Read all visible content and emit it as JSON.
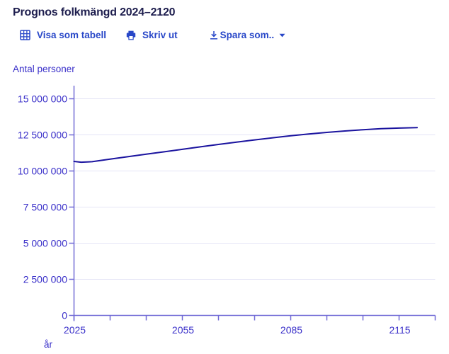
{
  "header": {
    "title": "Prognos folkmängd 2024–2120"
  },
  "toolbar": {
    "view_as_table_label": "Visa som tabell",
    "print_label": "Skriv ut",
    "save_as_label": "Spara som..",
    "icons": {
      "view_as_table": "table-grid-icon",
      "print": "printer-icon",
      "save_as": "download-icon",
      "save_as_menu": "chevron-down-icon"
    }
  },
  "chart": {
    "y_axis_title": "Antal personer",
    "x_axis_title": "år"
  },
  "colors": {
    "title_text": "#1e1e4e",
    "link": "#2847c8",
    "axis_label": "#392fc9",
    "axis_line": "#716bd6",
    "gridline": "#e4e4f6",
    "series_line": "#1b149f",
    "background": "#ffffff"
  },
  "chart_data": {
    "type": "line",
    "title": "Prognos folkmängd 2024–2120",
    "xlabel": "år",
    "ylabel": "Antal personer",
    "series": [
      {
        "name": "Prognos folkmängd",
        "x": [
          2025,
          2027,
          2030,
          2035,
          2040,
          2045,
          2050,
          2055,
          2060,
          2065,
          2070,
          2075,
          2080,
          2085,
          2090,
          2095,
          2100,
          2105,
          2110,
          2115,
          2120
        ],
        "y": [
          10660000,
          10610000,
          10640000,
          10820000,
          10990000,
          11160000,
          11330000,
          11500000,
          11670000,
          11840000,
          12000000,
          12150000,
          12300000,
          12440000,
          12560000,
          12670000,
          12770000,
          12860000,
          12930000,
          12970000,
          13000000
        ]
      }
    ],
    "xlim": [
      2025,
      2125
    ],
    "ylim": [
      0,
      15000000
    ],
    "x_ticks": [
      2025,
      2035,
      2045,
      2055,
      2065,
      2075,
      2085,
      2095,
      2105,
      2115,
      2125
    ],
    "x_labeled_ticks": [
      2025,
      2055,
      2085,
      2115
    ],
    "x_tick_labels": [
      "2025",
      "2055",
      "2085",
      "2115"
    ],
    "y_ticks": [
      0,
      2500000,
      5000000,
      7500000,
      10000000,
      12500000,
      15000000
    ],
    "y_tick_labels": [
      "0",
      "2 500 000",
      "5 000 000",
      "7 500 000",
      "10 000 000",
      "12 500 000",
      "15 000 000"
    ],
    "grid": "horizontal",
    "legend": "none"
  }
}
